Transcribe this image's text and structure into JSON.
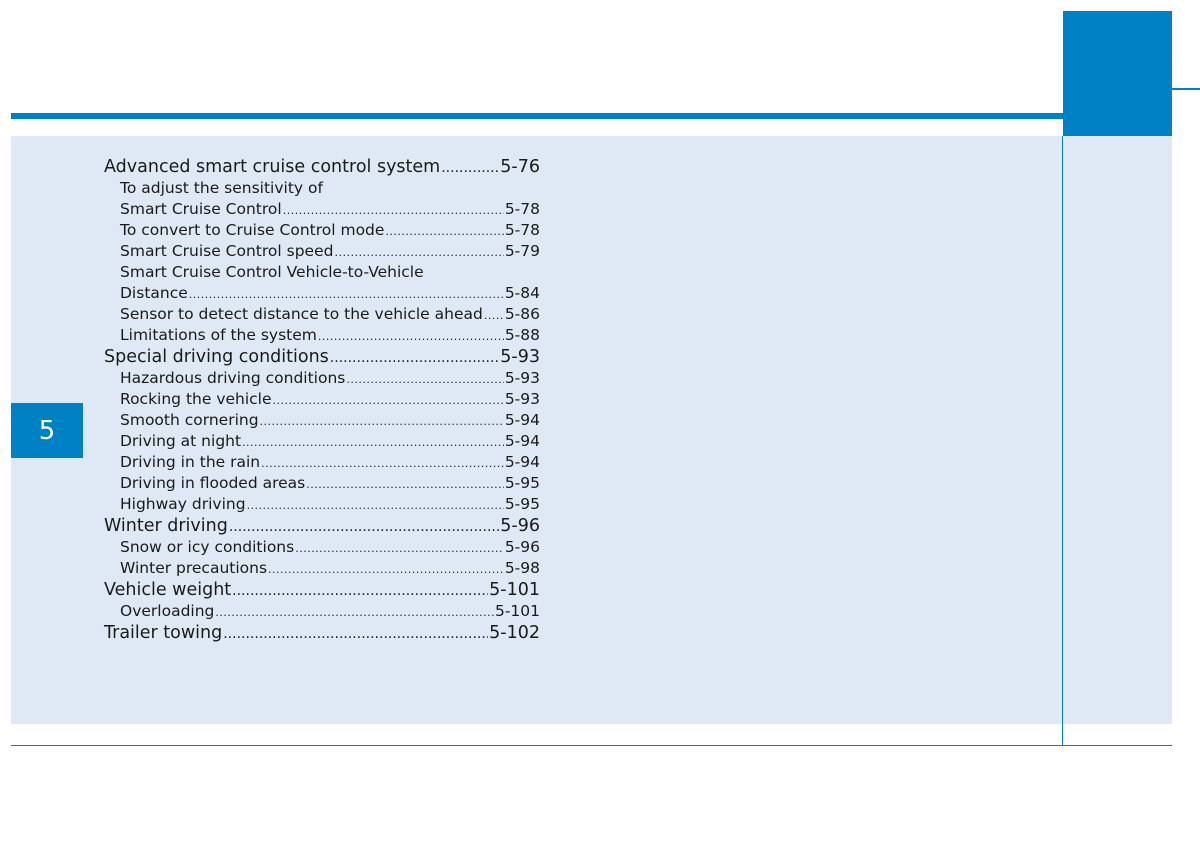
{
  "chapter": {
    "number": "5",
    "accent_color": "#0081c6",
    "panel_color": "#dfe9f5"
  },
  "toc": {
    "entries": [
      {
        "level": "main",
        "title": "Advanced smart cruise control system",
        "page": "5-76"
      },
      {
        "level": "sub",
        "title": "To adjust the sensitivity of",
        "page": ""
      },
      {
        "level": "sub",
        "title": "Smart Cruise Control",
        "page": "5-78"
      },
      {
        "level": "sub",
        "title": "To convert to Cruise Control mode",
        "page": "5-78"
      },
      {
        "level": "sub",
        "title": "Smart Cruise Control speed",
        "page": "5-79"
      },
      {
        "level": "sub",
        "title": "Smart Cruise Control Vehicle-to-Vehicle",
        "page": ""
      },
      {
        "level": "sub",
        "title": "Distance",
        "page": "5-84"
      },
      {
        "level": "sub",
        "title": "Sensor to detect distance to the vehicle ahead",
        "page": "5-86"
      },
      {
        "level": "sub",
        "title": "Limitations of the system",
        "page": "5-88"
      },
      {
        "level": "main",
        "title": "Special driving conditions",
        "page": "5-93"
      },
      {
        "level": "sub",
        "title": "Hazardous driving conditions",
        "page": "5-93"
      },
      {
        "level": "sub",
        "title": "Rocking the vehicle",
        "page": "5-93"
      },
      {
        "level": "sub",
        "title": "Smooth cornering",
        "page": "5-94"
      },
      {
        "level": "sub",
        "title": "Driving at night",
        "page": "5-94"
      },
      {
        "level": "sub",
        "title": "Driving in the rain",
        "page": "5-94"
      },
      {
        "level": "sub",
        "title": "Driving in flooded areas",
        "page": "5-95"
      },
      {
        "level": "sub",
        "title": "Highway driving",
        "page": "5-95"
      },
      {
        "level": "main",
        "title": "Winter driving",
        "page": "5-96"
      },
      {
        "level": "sub",
        "title": "Snow or icy conditions",
        "page": "5-96"
      },
      {
        "level": "sub",
        "title": "Winter precautions",
        "page": "5-98"
      },
      {
        "level": "main",
        "title": "Vehicle weight",
        "page": "5-101"
      },
      {
        "level": "sub",
        "title": "Overloading",
        "page": "5-101"
      },
      {
        "level": "main",
        "title": "Trailer towing",
        "page": "5-102"
      }
    ]
  }
}
